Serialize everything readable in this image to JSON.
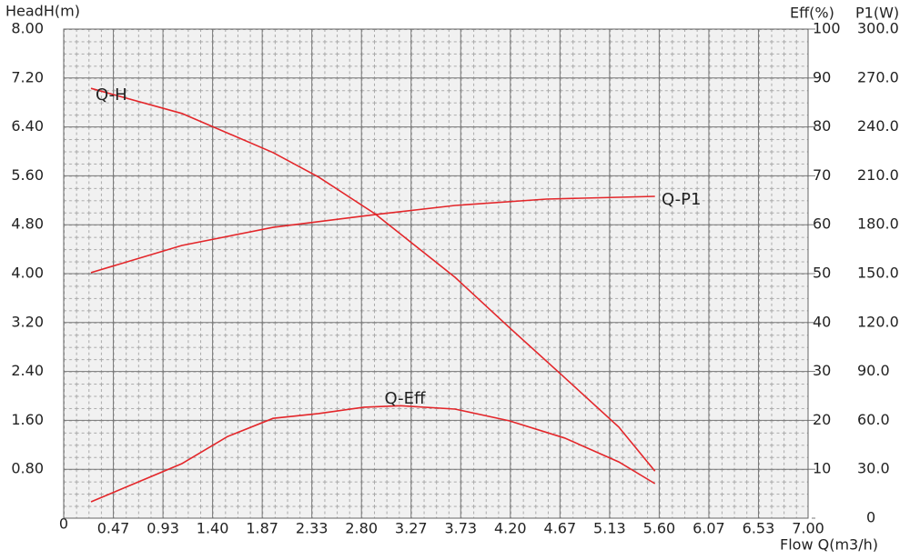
{
  "chart_data": {
    "type": "line",
    "y_label": "HeadH(m)",
    "y2_label": "Eff(%)",
    "y3_label": "P1(W)",
    "x_label": "Flow Q(m3/h)",
    "xlim": [
      0,
      7
    ],
    "xticks": [
      0,
      {
        "value": 0.4667,
        "label": "0.47"
      },
      {
        "value": 0.9333,
        "label": "0.93"
      },
      {
        "value": 1.4,
        "label": "1.40"
      },
      {
        "value": 1.8667,
        "label": "1.87"
      },
      {
        "value": 2.3333,
        "label": "2.33"
      },
      {
        "value": 2.8,
        "label": "2.80"
      },
      {
        "value": 3.2667,
        "label": "3.27"
      },
      {
        "value": 3.7333,
        "label": "3.73"
      },
      {
        "value": 4.2,
        "label": "4.20"
      },
      {
        "value": 4.6667,
        "label": "4.67"
      },
      {
        "value": 5.1333,
        "label": "5.13"
      },
      {
        "value": 5.6,
        "label": "5.60"
      },
      {
        "value": 6.0667,
        "label": "6.07"
      },
      {
        "value": 6.5333,
        "label": "6.53"
      },
      {
        "value": 7,
        "label": "7.00"
      }
    ],
    "ylim": [
      0,
      8
    ],
    "yticks": [
      {
        "value": 0.8,
        "label": "0.80"
      },
      {
        "value": 1.6,
        "label": "1.60"
      },
      {
        "value": 2.4,
        "label": "2.40"
      },
      {
        "value": 3.2,
        "label": "3.20"
      },
      {
        "value": 4,
        "label": "4.00"
      },
      {
        "value": 4.8,
        "label": "4.80"
      },
      {
        "value": 5.6,
        "label": "5.60"
      },
      {
        "value": 6.4,
        "label": "6.40"
      },
      {
        "value": 7.2,
        "label": "7.20"
      },
      {
        "value": 8,
        "label": "8.00"
      }
    ],
    "y2lim": [
      0,
      100
    ],
    "y2ticks": [
      10,
      20,
      30,
      40,
      50,
      60,
      70,
      80,
      90,
      100
    ],
    "y3lim": [
      0,
      300
    ],
    "y3ticks": [
      0,
      {
        "value": 30,
        "label": "30.0"
      },
      {
        "value": 60,
        "label": "60.0"
      },
      {
        "value": 90,
        "label": "90.0"
      },
      {
        "value": 120,
        "label": "120.0"
      },
      {
        "value": 150,
        "label": "150.0"
      },
      {
        "value": 180,
        "label": "180.0"
      },
      {
        "value": 210,
        "label": "210.0"
      },
      {
        "value": 240,
        "label": "240.0"
      },
      {
        "value": 270,
        "label": "270.0"
      },
      {
        "value": 300,
        "label": "300.0"
      }
    ],
    "grid": true,
    "series": [
      {
        "name": "Q-H",
        "color": "#e3262a",
        "axis": "y",
        "x": [
          0.257,
          1.112,
          1.968,
          2.396,
          2.927,
          3.68,
          4.19,
          4.71,
          5.22,
          5.56
        ],
        "values": [
          7.03,
          6.62,
          5.98,
          5.58,
          4.98,
          3.94,
          3.12,
          2.3,
          1.49,
          0.77
        ]
      },
      {
        "name": "Q-P1",
        "color": "#e3262a",
        "axis": "y3",
        "x": [
          0.257,
          1.112,
          1.968,
          2.927,
          3.68,
          4.54,
          5.56
        ],
        "values": [
          150.6,
          167.3,
          178.4,
          186.2,
          191.8,
          195.7,
          197.4
        ]
      },
      {
        "name": "Q-Eff",
        "color": "#e3262a",
        "axis": "y2",
        "x": [
          0.257,
          1.112,
          1.54,
          1.968,
          2.396,
          2.824,
          3.166,
          3.68,
          4.19,
          4.71,
          5.22,
          5.56
        ],
        "values": [
          3.35,
          11.15,
          16.7,
          20.4,
          21.4,
          22.7,
          23.0,
          22.3,
          19.9,
          16.4,
          11.5,
          7.06
        ]
      }
    ]
  }
}
